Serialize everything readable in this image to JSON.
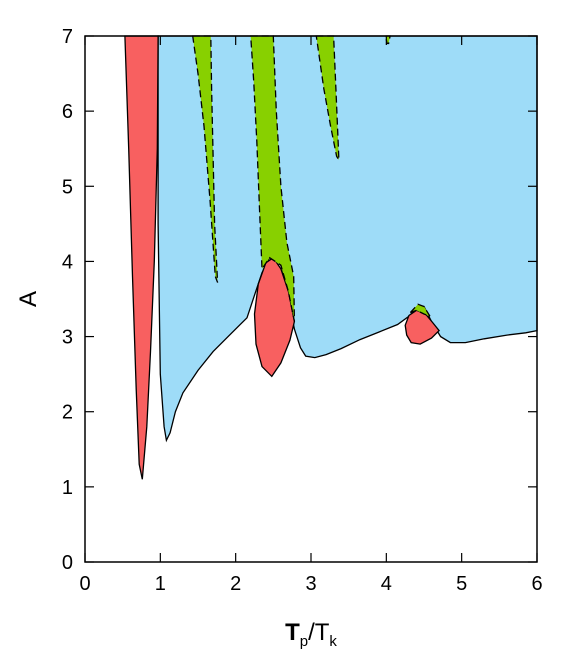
{
  "chart_data": {
    "type": "area",
    "title": "",
    "xlabel_main": "T",
    "xlabel_sub1": "p",
    "xlabel_sep": "/T",
    "xlabel_sub2": "k",
    "ylabel": "A",
    "xlim": [
      0,
      6
    ],
    "ylim": [
      0,
      7
    ],
    "x_ticks": [
      "0",
      "1",
      "2",
      "3",
      "4",
      "5",
      "6"
    ],
    "y_ticks": [
      "0",
      "1",
      "2",
      "3",
      "4",
      "5",
      "6",
      "7"
    ],
    "grid": false,
    "colors": {
      "blue_region": "#9edcf8",
      "red_region": "#f86060",
      "green_region": "#88d000",
      "boundary": "#000000"
    },
    "regions": {
      "blue": [
        [
          0.97,
          7.0
        ],
        [
          0.97,
          4.5
        ],
        [
          1.0,
          2.5
        ],
        [
          1.05,
          1.8
        ],
        [
          1.08,
          1.62
        ],
        [
          1.13,
          1.72
        ],
        [
          1.2,
          2.0
        ],
        [
          1.3,
          2.25
        ],
        [
          1.5,
          2.55
        ],
        [
          1.7,
          2.8
        ],
        [
          1.9,
          3.0
        ],
        [
          2.05,
          3.15
        ],
        [
          2.15,
          3.25
        ],
        [
          2.25,
          3.55
        ],
        [
          2.35,
          3.85
        ],
        [
          2.45,
          4.05
        ],
        [
          2.55,
          4.05
        ],
        [
          2.62,
          3.9
        ],
        [
          2.7,
          3.5
        ],
        [
          2.78,
          3.1
        ],
        [
          2.86,
          2.85
        ],
        [
          2.93,
          2.74
        ],
        [
          3.05,
          2.72
        ],
        [
          3.2,
          2.76
        ],
        [
          3.4,
          2.84
        ],
        [
          3.65,
          2.96
        ],
        [
          3.9,
          3.06
        ],
        [
          4.15,
          3.16
        ],
        [
          4.3,
          3.27
        ],
        [
          4.42,
          3.4
        ],
        [
          4.5,
          3.4
        ],
        [
          4.6,
          3.2
        ],
        [
          4.72,
          3.0
        ],
        [
          4.85,
          2.92
        ],
        [
          5.05,
          2.92
        ],
        [
          5.3,
          2.97
        ],
        [
          5.6,
          3.02
        ],
        [
          5.85,
          3.05
        ],
        [
          6.0,
          3.08
        ],
        [
          6.0,
          7.0
        ]
      ],
      "red": [
        [
          [
            0.53,
            7.0
          ],
          [
            0.97,
            7.0
          ],
          [
            0.96,
            5.5
          ],
          [
            0.92,
            4.0
          ],
          [
            0.87,
            2.8
          ],
          [
            0.82,
            1.8
          ],
          [
            0.76,
            1.1
          ],
          [
            0.72,
            1.3
          ],
          [
            0.68,
            2.3
          ],
          [
            0.63,
            3.8
          ],
          [
            0.58,
            5.5
          ]
        ],
        [
          [
            2.25,
            3.3
          ],
          [
            2.3,
            3.7
          ],
          [
            2.4,
            3.98
          ],
          [
            2.5,
            4.05
          ],
          [
            2.6,
            3.9
          ],
          [
            2.7,
            3.6
          ],
          [
            2.78,
            3.2
          ],
          [
            2.72,
            2.95
          ],
          [
            2.6,
            2.65
          ],
          [
            2.48,
            2.47
          ],
          [
            2.35,
            2.6
          ],
          [
            2.27,
            2.9
          ]
        ],
        [
          [
            4.25,
            3.15
          ],
          [
            4.3,
            3.28
          ],
          [
            4.4,
            3.35
          ],
          [
            4.52,
            3.3
          ],
          [
            4.62,
            3.18
          ],
          [
            4.7,
            3.08
          ],
          [
            4.6,
            2.98
          ],
          [
            4.45,
            2.9
          ],
          [
            4.33,
            2.92
          ],
          [
            4.27,
            3.02
          ]
        ]
      ],
      "green": [
        [
          [
            1.43,
            7.0
          ],
          [
            1.67,
            7.0
          ],
          [
            1.68,
            6.3
          ],
          [
            1.72,
            4.5
          ],
          [
            1.76,
            3.72
          ],
          [
            1.73,
            3.8
          ],
          [
            1.66,
            4.8
          ],
          [
            1.58,
            5.8
          ],
          [
            1.5,
            6.5
          ]
        ],
        [
          [
            2.2,
            7.0
          ],
          [
            2.5,
            7.0
          ],
          [
            2.54,
            6.0
          ],
          [
            2.6,
            5.0
          ],
          [
            2.68,
            4.25
          ],
          [
            2.77,
            3.8
          ],
          [
            2.78,
            3.2
          ],
          [
            2.7,
            3.6
          ],
          [
            2.6,
            3.95
          ],
          [
            2.45,
            4.05
          ],
          [
            2.35,
            3.9
          ],
          [
            2.32,
            4.6
          ],
          [
            2.28,
            5.6
          ],
          [
            2.24,
            6.4
          ]
        ],
        [
          [
            3.07,
            7.0
          ],
          [
            3.3,
            7.0
          ],
          [
            3.33,
            6.3
          ],
          [
            3.37,
            5.35
          ],
          [
            3.34,
            5.4
          ],
          [
            3.26,
            5.8
          ],
          [
            3.17,
            6.3
          ]
        ],
        [
          [
            3.99,
            7.0
          ],
          [
            4.05,
            7.0
          ],
          [
            4.03,
            6.9
          ],
          [
            4.01,
            6.9
          ]
        ],
        [
          [
            4.32,
            3.32
          ],
          [
            4.42,
            3.43
          ],
          [
            4.5,
            3.4
          ],
          [
            4.58,
            3.27
          ],
          [
            4.5,
            3.3
          ],
          [
            4.4,
            3.35
          ]
        ]
      ]
    }
  }
}
